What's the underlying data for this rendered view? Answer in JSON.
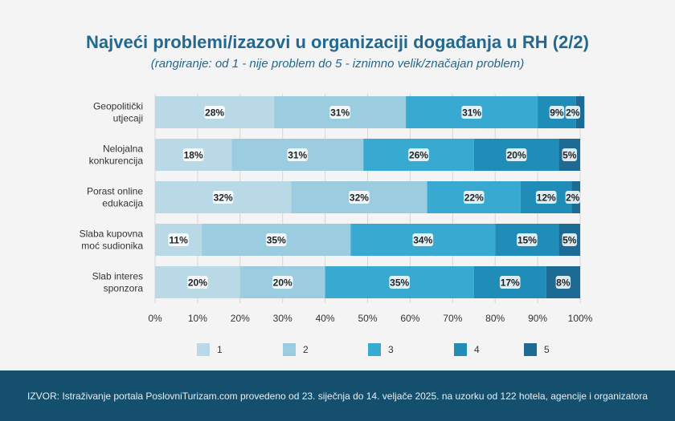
{
  "title": "Najveći problemi/izazovi u organizaciji događanja u RH (2/2)",
  "subtitle": "(rangiranje: od 1 - nije problem do 5 - iznimno velik/značajan problem)",
  "footer": "IZVOR: Istraživanje portala PoslovniTurizam.com provedeno od 23. siječnja do 14. veljače 2025. na uzorku od 122 hotela, agencije i organizatora",
  "chart_data": {
    "type": "bar",
    "orientation": "horizontal",
    "stacked": true,
    "categories": [
      [
        "Geopolitički",
        "utjecaji"
      ],
      [
        "Nelojalna",
        "konkurencija"
      ],
      [
        "Porast online",
        "edukacija"
      ],
      [
        "Slaba kupovna",
        "moć sudionika"
      ],
      [
        "Slab interes",
        "sponzora"
      ]
    ],
    "series": [
      {
        "name": "1",
        "color": "#b9d9e7",
        "values": [
          28,
          18,
          32,
          11,
          20
        ],
        "labels": [
          "28%",
          "18%",
          "32%",
          "11%",
          "20%"
        ]
      },
      {
        "name": "2",
        "color": "#9ccce0",
        "values": [
          31,
          31,
          32,
          35,
          20
        ],
        "labels": [
          "31%",
          "31%",
          "32%",
          "35%",
          "20%"
        ]
      },
      {
        "name": "3",
        "color": "#38a9d0",
        "values": [
          31,
          26,
          22,
          34,
          35
        ],
        "labels": [
          "31%",
          "26%",
          "22%",
          "34%",
          "35%"
        ]
      },
      {
        "name": "4",
        "color": "#1f8db8",
        "values": [
          9,
          20,
          12,
          15,
          17
        ],
        "labels": [
          "9%",
          "20%",
          "12%",
          "15%",
          "17%"
        ]
      },
      {
        "name": "5",
        "color": "#1d6a94",
        "values": [
          2,
          5,
          2,
          5,
          8
        ],
        "labels": [
          "2%",
          "5%",
          "2%",
          "5%",
          "8%"
        ]
      }
    ],
    "xlim": [
      0,
      100
    ],
    "xticks": [
      "0%",
      "10%",
      "20%",
      "30%",
      "40%",
      "50%",
      "60%",
      "70%",
      "80%",
      "90%",
      "100%"
    ],
    "grid": true,
    "legend": "bottom"
  }
}
